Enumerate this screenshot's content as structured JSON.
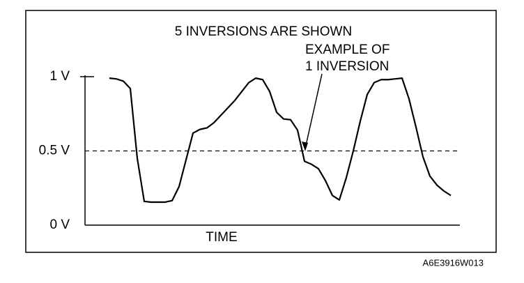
{
  "chart_data": {
    "type": "line",
    "title": "5 INVERSIONS ARE SHOWN",
    "annotations": [
      "EXAMPLE OF",
      "1 INVERSION"
    ],
    "x_label": "TIME",
    "figure_code": "A6E3916W013",
    "ylim": [
      0,
      1
    ],
    "yticks": [
      {
        "value": 0,
        "label": "0 V"
      },
      {
        "value": 0.5,
        "label": "0.5 V"
      },
      {
        "value": 1,
        "label": "1 V"
      }
    ],
    "color": "#000000",
    "values": [
      0.99,
      0.985,
      0.97,
      0.92,
      0.45,
      0.16,
      0.155,
      0.155,
      0.155,
      0.165,
      0.26,
      0.44,
      0.62,
      0.645,
      0.655,
      0.69,
      0.74,
      0.79,
      0.84,
      0.9,
      0.96,
      0.99,
      0.98,
      0.9,
      0.76,
      0.715,
      0.71,
      0.64,
      0.43,
      0.41,
      0.38,
      0.3,
      0.2,
      0.17,
      0.32,
      0.5,
      0.7,
      0.88,
      0.96,
      0.98,
      0.98,
      0.985,
      0.99,
      0.85,
      0.66,
      0.46,
      0.33,
      0.27,
      0.23,
      0.2
    ]
  }
}
